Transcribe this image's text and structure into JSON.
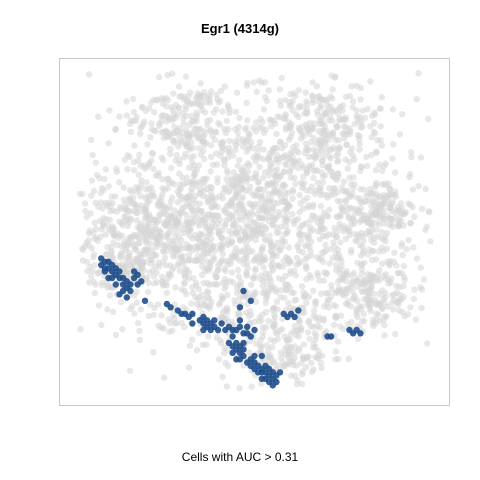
{
  "chart_data": {
    "type": "scatter",
    "title": "Egr1 (4314g)",
    "xlabel": "Cells with AUC > 0.31",
    "ylabel": "",
    "grid": false,
    "legend": "none",
    "colors": {
      "background_cells": "#d6d6d6",
      "active_cells": "#1f4e8c",
      "frame": "#c8c8c8"
    },
    "series": [
      {
        "role": "all cells (grey)",
        "clusters": [
          {
            "cx": 0.5,
            "cy": 0.42,
            "sx": 0.2,
            "sy": 0.16,
            "n": 1300
          },
          {
            "cx": 0.2,
            "cy": 0.5,
            "sx": 0.085,
            "sy": 0.09,
            "n": 360
          },
          {
            "cx": 0.52,
            "cy": 0.75,
            "sx": 0.19,
            "sy": 0.09,
            "n": 320
          },
          {
            "cx": 0.68,
            "cy": 0.17,
            "sx": 0.08,
            "sy": 0.08,
            "n": 220
          },
          {
            "cx": 0.3,
            "cy": 0.15,
            "sx": 0.075,
            "sy": 0.06,
            "n": 160
          },
          {
            "cx": 0.85,
            "cy": 0.45,
            "sx": 0.05,
            "sy": 0.05,
            "n": 150
          },
          {
            "cx": 0.81,
            "cy": 0.68,
            "sx": 0.06,
            "sy": 0.06,
            "n": 150
          },
          {
            "cx": 0.58,
            "cy": 0.88,
            "sx": 0.06,
            "sy": 0.045,
            "n": 110
          },
          {
            "cx": 0.13,
            "cy": 0.6,
            "sx": 0.05,
            "sy": 0.055,
            "n": 90
          }
        ]
      },
      {
        "role": "cells with AUC > 0.31 (blue)",
        "points": [
          [
            0.08,
            0.58
          ],
          [
            0.08,
            0.6
          ],
          [
            0.09,
            0.59
          ],
          [
            0.09,
            0.61
          ],
          [
            0.09,
            0.62
          ],
          [
            0.1,
            0.59
          ],
          [
            0.1,
            0.61
          ],
          [
            0.11,
            0.6
          ],
          [
            0.11,
            0.62
          ],
          [
            0.12,
            0.61
          ],
          [
            0.12,
            0.63
          ],
          [
            0.11,
            0.64
          ],
          [
            0.13,
            0.62
          ],
          [
            0.13,
            0.64
          ],
          [
            0.14,
            0.64
          ],
          [
            0.14,
            0.66
          ],
          [
            0.15,
            0.65
          ],
          [
            0.15,
            0.67
          ],
          [
            0.14,
            0.68
          ],
          [
            0.16,
            0.68
          ],
          [
            0.16,
            0.66
          ],
          [
            0.17,
            0.62
          ],
          [
            0.17,
            0.64
          ],
          [
            0.18,
            0.63
          ],
          [
            0.18,
            0.66
          ],
          [
            0.19,
            0.65
          ],
          [
            0.12,
            0.66
          ],
          [
            0.1,
            0.64
          ],
          [
            0.13,
            0.69
          ],
          [
            0.15,
            0.7
          ],
          [
            0.2,
            0.71
          ],
          [
            0.26,
            0.72
          ],
          [
            0.27,
            0.73
          ],
          [
            0.29,
            0.74
          ],
          [
            0.3,
            0.75
          ],
          [
            0.31,
            0.75
          ],
          [
            0.32,
            0.76
          ],
          [
            0.33,
            0.75
          ],
          [
            0.33,
            0.78
          ],
          [
            0.35,
            0.77
          ],
          [
            0.36,
            0.76
          ],
          [
            0.36,
            0.78
          ],
          [
            0.37,
            0.77
          ],
          [
            0.37,
            0.79
          ],
          [
            0.38,
            0.78
          ],
          [
            0.38,
            0.8
          ],
          [
            0.39,
            0.79
          ],
          [
            0.4,
            0.8
          ],
          [
            0.39,
            0.77
          ],
          [
            0.36,
            0.8
          ],
          [
            0.41,
            0.78
          ],
          [
            0.42,
            0.8
          ],
          [
            0.43,
            0.79
          ],
          [
            0.44,
            0.8
          ],
          [
            0.44,
            0.82
          ],
          [
            0.45,
            0.8
          ],
          [
            0.46,
            0.79
          ],
          [
            0.47,
            0.81
          ],
          [
            0.48,
            0.79
          ],
          [
            0.48,
            0.81
          ],
          [
            0.49,
            0.82
          ],
          [
            0.5,
            0.8
          ],
          [
            0.46,
            0.77
          ],
          [
            0.47,
            0.68
          ],
          [
            0.49,
            0.71
          ],
          [
            0.46,
            0.73
          ],
          [
            0.43,
            0.84
          ],
          [
            0.44,
            0.85
          ],
          [
            0.45,
            0.84
          ],
          [
            0.45,
            0.86
          ],
          [
            0.46,
            0.85
          ],
          [
            0.46,
            0.87
          ],
          [
            0.47,
            0.86
          ],
          [
            0.47,
            0.84
          ],
          [
            0.44,
            0.87
          ],
          [
            0.45,
            0.89
          ],
          [
            0.46,
            0.89
          ],
          [
            0.47,
            0.88
          ],
          [
            0.48,
            0.9
          ],
          [
            0.49,
            0.89
          ],
          [
            0.49,
            0.91
          ],
          [
            0.5,
            0.9
          ],
          [
            0.5,
            0.92
          ],
          [
            0.51,
            0.91
          ],
          [
            0.52,
            0.92
          ],
          [
            0.52,
            0.93
          ],
          [
            0.53,
            0.91
          ],
          [
            0.53,
            0.93
          ],
          [
            0.54,
            0.92
          ],
          [
            0.54,
            0.94
          ],
          [
            0.55,
            0.93
          ],
          [
            0.55,
            0.95
          ],
          [
            0.53,
            0.95
          ],
          [
            0.52,
            0.95
          ],
          [
            0.51,
            0.93
          ],
          [
            0.56,
            0.94
          ],
          [
            0.54,
            0.96
          ],
          [
            0.55,
            0.97
          ],
          [
            0.57,
            0.93
          ],
          [
            0.56,
            0.96
          ],
          [
            0.52,
            0.88
          ],
          [
            0.5,
            0.88
          ],
          [
            0.58,
            0.75
          ],
          [
            0.59,
            0.76
          ],
          [
            0.6,
            0.75
          ],
          [
            0.61,
            0.76
          ],
          [
            0.76,
            0.8
          ],
          [
            0.77,
            0.81
          ],
          [
            0.78,
            0.8
          ],
          [
            0.79,
            0.81
          ],
          [
            0.7,
            0.82
          ],
          [
            0.71,
            0.82
          ],
          [
            0.62,
            0.74
          ]
        ]
      }
    ]
  }
}
